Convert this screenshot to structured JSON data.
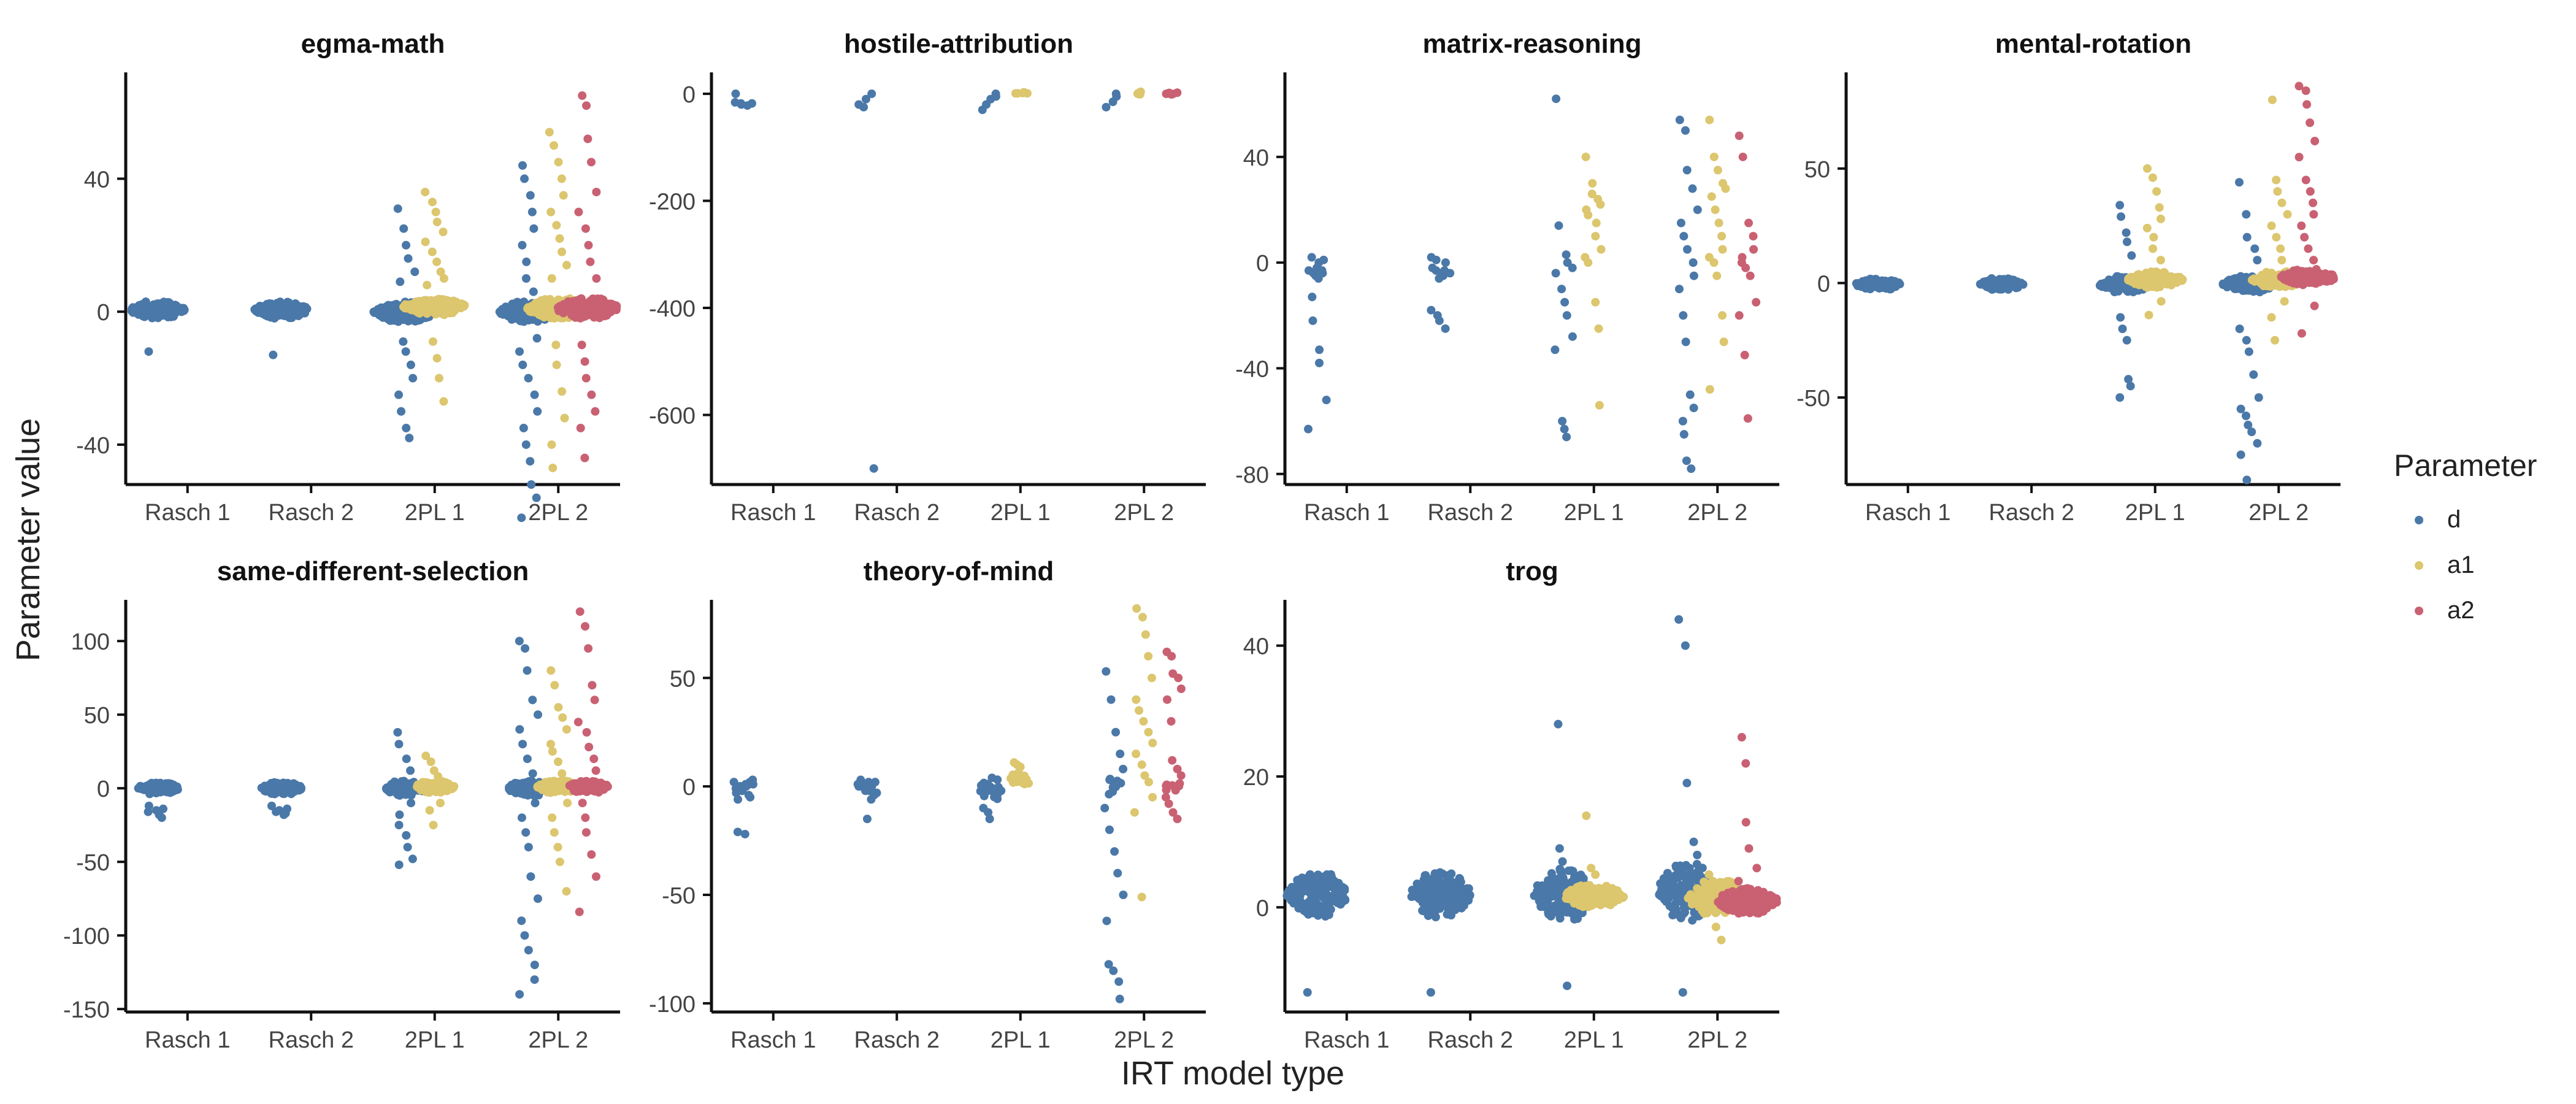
{
  "figure": {
    "xlabel": "IRT model type",
    "ylabel": "Parameter value",
    "legend_title": "Parameter",
    "legend": [
      {
        "key": "d",
        "label": "d",
        "color": "#4a78a8"
      },
      {
        "key": "a1",
        "label": "a1",
        "color": "#dcc66e"
      },
      {
        "key": "a2",
        "label": "a2",
        "color": "#c96173"
      }
    ],
    "categories": [
      "Rasch 1",
      "Rasch 2",
      "2PL 1",
      "2PL 2"
    ]
  },
  "chart_data": [
    {
      "type": "scatter",
      "title": "egma-math",
      "ylim": [
        -52,
        72
      ],
      "yticks": [
        -40,
        0,
        40
      ],
      "categories": [
        "Rasch 1",
        "Rasch 2",
        "2PL 1",
        "2PL 2"
      ],
      "groups": [
        {
          "category": "Rasch 1",
          "param": "d",
          "n": 150,
          "core": [
            -2,
            3
          ],
          "extra": [
            -12
          ]
        },
        {
          "category": "Rasch 2",
          "param": "d",
          "n": 150,
          "core": [
            -2,
            3
          ],
          "extra": [
            -13
          ]
        },
        {
          "category": "2PL 1",
          "param": "d",
          "n": 180,
          "core": [
            -3,
            3
          ],
          "extra": [
            31,
            25,
            20,
            16,
            12,
            9,
            -9,
            -12,
            -16,
            -20,
            -25,
            -30,
            -35,
            -38
          ]
        },
        {
          "category": "2PL 1",
          "param": "a1",
          "n": 180,
          "core": [
            -1,
            4
          ],
          "extra": [
            36,
            33,
            30,
            27,
            24,
            21,
            18,
            15,
            12,
            10,
            8,
            -9,
            -14,
            -20,
            -27
          ]
        },
        {
          "category": "2PL 2",
          "param": "d",
          "n": 180,
          "core": [
            -3,
            3
          ],
          "extra": [
            44,
            40,
            35,
            30,
            25,
            20,
            15,
            10,
            6,
            -8,
            -12,
            -16,
            -20,
            -25,
            -30,
            -35,
            -40,
            -45,
            -52,
            -56,
            -62
          ]
        },
        {
          "category": "2PL 2",
          "param": "a1",
          "n": 180,
          "core": [
            -2,
            4
          ],
          "extra": [
            54,
            50,
            45,
            40,
            35,
            30,
            26,
            22,
            18,
            14,
            10,
            -10,
            -16,
            -24,
            -32,
            -40,
            -47
          ]
        },
        {
          "category": "2PL 2",
          "param": "a2",
          "n": 180,
          "core": [
            -2,
            4
          ],
          "extra": [
            65,
            62,
            52,
            45,
            36,
            30,
            25,
            20,
            15,
            10,
            -10,
            -15,
            -20,
            -25,
            -30,
            -35,
            -44
          ]
        }
      ]
    },
    {
      "type": "scatter",
      "title": "hostile-attribution",
      "ylim": [
        -730,
        40
      ],
      "yticks": [
        -600,
        -400,
        -200,
        0
      ],
      "categories": [
        "Rasch 1",
        "Rasch 2",
        "2PL 1",
        "2PL 2"
      ],
      "groups": [
        {
          "category": "Rasch 1",
          "param": "d",
          "n": 0,
          "core": [
            0,
            0
          ],
          "extra": [
            -16,
            -18,
            -20,
            -22,
            -18,
            0
          ]
        },
        {
          "category": "Rasch 2",
          "param": "d",
          "n": 0,
          "core": [
            0,
            0
          ],
          "extra": [
            -20,
            -25,
            -10,
            0,
            -700
          ]
        },
        {
          "category": "2PL 1",
          "param": "d",
          "n": 0,
          "core": [
            0,
            0
          ],
          "extra": [
            -30,
            -20,
            -10,
            -5,
            0
          ]
        },
        {
          "category": "2PL 1",
          "param": "a1",
          "n": 6,
          "core": [
            -2,
            4
          ],
          "extra": []
        },
        {
          "category": "2PL 2",
          "param": "d",
          "n": 0,
          "core": [
            0,
            0
          ],
          "extra": [
            -25,
            -15,
            -5,
            0
          ]
        },
        {
          "category": "2PL 2",
          "param": "a1",
          "n": 6,
          "core": [
            -2,
            4
          ],
          "extra": []
        },
        {
          "category": "2PL 2",
          "param": "a2",
          "n": 6,
          "core": [
            -2,
            4
          ],
          "extra": []
        }
      ]
    },
    {
      "type": "scatter",
      "title": "matrix-reasoning",
      "ylim": [
        -84,
        72
      ],
      "yticks": [
        -80,
        -40,
        0,
        40
      ],
      "categories": [
        "Rasch 1",
        "Rasch 2",
        "2PL 1",
        "2PL 2"
      ],
      "groups": [
        {
          "category": "Rasch 1",
          "param": "d",
          "n": 0,
          "core": [
            0,
            0
          ],
          "extra": [
            -3,
            -4,
            -2,
            0,
            1,
            2,
            -5,
            -6,
            -3,
            -4,
            -13,
            -22,
            -33,
            -38,
            -52,
            -63
          ]
        },
        {
          "category": "Rasch 2",
          "param": "d",
          "n": 0,
          "core": [
            0,
            0
          ],
          "extra": [
            -2,
            -3,
            -4,
            -5,
            0,
            2,
            1,
            -6,
            -3,
            -4,
            -18,
            -20,
            -22,
            -25
          ]
        },
        {
          "category": "2PL 1",
          "param": "d",
          "n": 0,
          "core": [
            0,
            0
          ],
          "extra": [
            62,
            14,
            3,
            0,
            -2,
            -4,
            -10,
            -15,
            -20,
            -28,
            -33,
            -60,
            -63,
            -66
          ]
        },
        {
          "category": "2PL 1",
          "param": "a1",
          "n": 0,
          "core": [
            0,
            0
          ],
          "extra": [
            40,
            30,
            26,
            24,
            22,
            20,
            18,
            15,
            10,
            5,
            2,
            0,
            -15,
            -25,
            -54
          ]
        },
        {
          "category": "2PL 2",
          "param": "d",
          "n": 0,
          "core": [
            0,
            0
          ],
          "extra": [
            54,
            50,
            35,
            28,
            20,
            15,
            10,
            5,
            0,
            -5,
            -10,
            -20,
            -30,
            -50,
            -55,
            -60,
            -65,
            -75,
            -78
          ]
        },
        {
          "category": "2PL 2",
          "param": "a1",
          "n": 0,
          "core": [
            0,
            0
          ],
          "extra": [
            54,
            40,
            35,
            30,
            28,
            25,
            20,
            15,
            10,
            5,
            2,
            0,
            -5,
            -20,
            -30,
            -48
          ]
        },
        {
          "category": "2PL 2",
          "param": "a2",
          "n": 0,
          "core": [
            0,
            0
          ],
          "extra": [
            48,
            40,
            15,
            10,
            5,
            2,
            0,
            -2,
            -5,
            -15,
            -20,
            -35,
            -59
          ]
        }
      ]
    },
    {
      "type": "scatter",
      "title": "mental-rotation",
      "ylim": [
        -88,
        92
      ],
      "yticks": [
        -50,
        0,
        50
      ],
      "categories": [
        "Rasch 1",
        "Rasch 2",
        "2PL 1",
        "2PL 2"
      ],
      "groups": [
        {
          "category": "Rasch 1",
          "param": "d",
          "n": 110,
          "core": [
            -3,
            2
          ],
          "extra": []
        },
        {
          "category": "Rasch 2",
          "param": "d",
          "n": 110,
          "core": [
            -3,
            2
          ],
          "extra": []
        },
        {
          "category": "2PL 1",
          "param": "d",
          "n": 140,
          "core": [
            -4,
            3
          ],
          "extra": [
            34,
            29,
            22,
            18,
            12,
            -15,
            -20,
            -25,
            -42,
            -45,
            -50
          ]
        },
        {
          "category": "2PL 1",
          "param": "a1",
          "n": 150,
          "core": [
            -2,
            5
          ],
          "extra": [
            50,
            46,
            40,
            33,
            28,
            24,
            20,
            15,
            10,
            -8,
            -14
          ]
        },
        {
          "category": "2PL 2",
          "param": "d",
          "n": 140,
          "core": [
            -4,
            3
          ],
          "extra": [
            44,
            30,
            20,
            15,
            10,
            -20,
            -25,
            -30,
            -40,
            -50,
            -55,
            -58,
            -62,
            -65,
            -70,
            -75,
            -86
          ]
        },
        {
          "category": "2PL 2",
          "param": "a1",
          "n": 150,
          "core": [
            -2,
            5
          ],
          "extra": [
            80,
            45,
            40,
            35,
            30,
            25,
            20,
            15,
            10,
            -8,
            -15,
            -25
          ]
        },
        {
          "category": "2PL 2",
          "param": "a2",
          "n": 150,
          "core": [
            -1,
            6
          ],
          "extra": [
            86,
            84,
            78,
            70,
            62,
            55,
            45,
            40,
            35,
            30,
            25,
            20,
            15,
            10,
            -10,
            -22
          ]
        }
      ]
    },
    {
      "type": "scatter",
      "title": "same-different-selection",
      "ylim": [
        -152,
        128
      ],
      "yticks": [
        -150,
        -100,
        -50,
        0,
        50,
        100
      ],
      "categories": [
        "Rasch 1",
        "Rasch 2",
        "2PL 1",
        "2PL 2"
      ],
      "groups": [
        {
          "category": "Rasch 1",
          "param": "d",
          "n": 100,
          "core": [
            -4,
            4
          ],
          "extra": [
            -12,
            -15,
            -18,
            -20,
            -14,
            -16
          ]
        },
        {
          "category": "Rasch 2",
          "param": "d",
          "n": 100,
          "core": [
            -4,
            4
          ],
          "extra": [
            -12,
            -15,
            -18,
            -17,
            -14,
            -16
          ]
        },
        {
          "category": "2PL 1",
          "param": "d",
          "n": 90,
          "core": [
            -5,
            5
          ],
          "extra": [
            38,
            30,
            20,
            12,
            -10,
            -18,
            -25,
            -32,
            -40,
            -48,
            -52
          ]
        },
        {
          "category": "2PL 1",
          "param": "a1",
          "n": 90,
          "core": [
            -3,
            5
          ],
          "extra": [
            22,
            18,
            12,
            8,
            -10,
            -15,
            -25
          ]
        },
        {
          "category": "2PL 2",
          "param": "d",
          "n": 100,
          "core": [
            -5,
            5
          ],
          "extra": [
            100,
            95,
            80,
            60,
            50,
            40,
            30,
            20,
            10,
            -10,
            -20,
            -30,
            -40,
            -60,
            -75,
            -90,
            -100,
            -110,
            -120,
            -130,
            -140
          ]
        },
        {
          "category": "2PL 2",
          "param": "a1",
          "n": 100,
          "core": [
            -3,
            5
          ],
          "extra": [
            80,
            70,
            55,
            48,
            40,
            30,
            25,
            18,
            10,
            -10,
            -20,
            -30,
            -40,
            -50,
            -70
          ]
        },
        {
          "category": "2PL 2",
          "param": "a2",
          "n": 100,
          "core": [
            -3,
            5
          ],
          "extra": [
            120,
            110,
            95,
            70,
            60,
            45,
            38,
            28,
            20,
            12,
            -10,
            -20,
            -30,
            -45,
            -60,
            -84
          ]
        }
      ]
    },
    {
      "type": "scatter",
      "title": "theory-of-mind",
      "ylim": [
        -104,
        86
      ],
      "yticks": [
        -100,
        -50,
        0,
        50
      ],
      "categories": [
        "Rasch 1",
        "Rasch 2",
        "2PL 1",
        "2PL 2"
      ],
      "groups": [
        {
          "category": "Rasch 1",
          "param": "d",
          "n": 0,
          "core": [
            0,
            0
          ],
          "extra": [
            -1,
            -2,
            0,
            1,
            2,
            -3,
            0,
            -1,
            -4,
            3,
            2,
            0,
            -2,
            1,
            -5,
            -6,
            -21,
            -22,
            0,
            1
          ]
        },
        {
          "category": "Rasch 2",
          "param": "d",
          "n": 0,
          "core": [
            0,
            0
          ],
          "extra": [
            0,
            1,
            -2,
            2,
            -3,
            3,
            -1,
            0,
            -6,
            2,
            1,
            -2,
            -15,
            0,
            -4,
            0
          ]
        },
        {
          "category": "2PL 1",
          "param": "d",
          "n": 28,
          "core": [
            -6,
            4
          ],
          "extra": [
            -10,
            -12,
            -15
          ]
        },
        {
          "category": "2PL 1",
          "param": "a1",
          "n": 22,
          "core": [
            0,
            8
          ],
          "extra": [
            11,
            10,
            9
          ]
        },
        {
          "category": "2PL 2",
          "param": "d",
          "n": 10,
          "core": [
            -5,
            5
          ],
          "extra": [
            53,
            40,
            25,
            15,
            8,
            -10,
            -20,
            -30,
            -40,
            -50,
            -62,
            -82,
            -85,
            -90,
            -98
          ]
        },
        {
          "category": "2PL 2",
          "param": "a1",
          "n": 0,
          "core": [
            0,
            0
          ],
          "extra": [
            82,
            78,
            70,
            60,
            50,
            40,
            35,
            30,
            25,
            20,
            15,
            10,
            5,
            2,
            -5,
            -12,
            -51
          ]
        },
        {
          "category": "2PL 2",
          "param": "a2",
          "n": 8,
          "core": [
            -3,
            3
          ],
          "extra": [
            62,
            60,
            52,
            50,
            45,
            40,
            30,
            12,
            8,
            5,
            -5,
            -8,
            -12,
            -15
          ]
        }
      ]
    },
    {
      "type": "scatter",
      "title": "trog",
      "ylim": [
        -16,
        47
      ],
      "yticks": [
        0,
        20,
        40
      ],
      "categories": [
        "Rasch 1",
        "Rasch 2",
        "2PL 1",
        "2PL 2"
      ],
      "groups": [
        {
          "category": "Rasch 1",
          "param": "d",
          "n": 170,
          "core": [
            -1.5,
            5.5
          ],
          "extra": [
            -13
          ]
        },
        {
          "category": "Rasch 2",
          "param": "d",
          "n": 170,
          "core": [
            -1.5,
            5.5
          ],
          "extra": [
            -13
          ]
        },
        {
          "category": "2PL 1",
          "param": "d",
          "n": 170,
          "core": [
            -2,
            6
          ],
          "extra": [
            28,
            9,
            7,
            -12
          ]
        },
        {
          "category": "2PL 1",
          "param": "a1",
          "n": 170,
          "core": [
            0,
            3.5
          ],
          "extra": [
            14,
            6,
            5
          ]
        },
        {
          "category": "2PL 2",
          "param": "d",
          "n": 170,
          "core": [
            -2,
            7
          ],
          "extra": [
            44,
            40,
            19,
            10,
            8,
            -13
          ]
        },
        {
          "category": "2PL 2",
          "param": "a1",
          "n": 170,
          "core": [
            -1,
            4
          ],
          "extra": [
            5,
            4,
            -3,
            -5
          ]
        },
        {
          "category": "2PL 2",
          "param": "a2",
          "n": 170,
          "core": [
            -1,
            3
          ],
          "extra": [
            26,
            22,
            13,
            9,
            6,
            4
          ]
        }
      ]
    }
  ]
}
